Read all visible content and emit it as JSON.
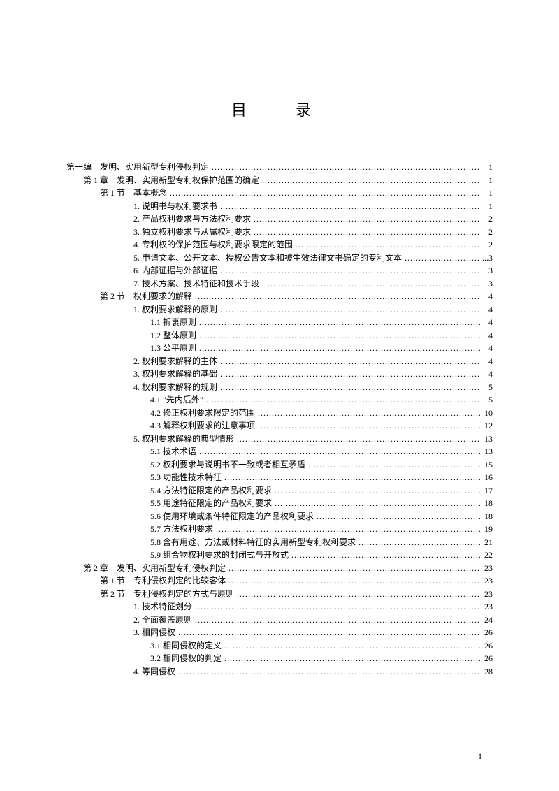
{
  "title": "目　录",
  "footer": "— 1 —",
  "entries": [
    {
      "indent": 0,
      "label": "第一编　发明、实用新型专利侵权判定",
      "page": "1"
    },
    {
      "indent": 1,
      "label": "第 1 章　发明、实用新型专利权保护范围的确定",
      "page": "1"
    },
    {
      "indent": 2,
      "label": "第 1 节　基本概念",
      "page": "1"
    },
    {
      "indent": 3,
      "label": "1. 说明书与权利要求书",
      "page": "1"
    },
    {
      "indent": 3,
      "label": "2. 产品权利要求与方法权利要求",
      "page": "2"
    },
    {
      "indent": 3,
      "label": "3. 独立权利要求与从属权利要求",
      "page": "2"
    },
    {
      "indent": 3,
      "label": "4. 专利权的保护范围与权利要求限定的范围",
      "page": "2"
    },
    {
      "indent": 3,
      "label": "5. 申请文本、公开文本、授权公告文本和被生效法律文书确定的专利文本",
      "page": "...3"
    },
    {
      "indent": 3,
      "label": "6. 内部证据与外部证据",
      "page": "3"
    },
    {
      "indent": 3,
      "label": "7. 技术方案、技术特征和技术手段",
      "page": "3"
    },
    {
      "indent": 2,
      "label": "第 2 节　权利要求的解释",
      "page": "4"
    },
    {
      "indent": 3,
      "label": "1. 权利要求解释的原则",
      "page": "4"
    },
    {
      "indent": 4,
      "label": "1.1 折衷原则",
      "page": "4"
    },
    {
      "indent": 4,
      "label": "1.2 整体原则",
      "page": "4"
    },
    {
      "indent": 4,
      "label": "1.3 公平原则",
      "page": "4"
    },
    {
      "indent": 3,
      "label": "2. 权利要求解释的主体",
      "page": "4"
    },
    {
      "indent": 3,
      "label": "3. 权利要求解释的基础",
      "page": "4"
    },
    {
      "indent": 3,
      "label": "4. 权利要求解释的规则",
      "page": "5"
    },
    {
      "indent": 4,
      "label": "4.1 \"先内后外\"",
      "page": "5"
    },
    {
      "indent": 4,
      "label": "4.2 修正权利要求限定的范围",
      "page": "10"
    },
    {
      "indent": 4,
      "label": "4.3 解释权利要求的注意事项",
      "page": "12"
    },
    {
      "indent": 3,
      "label": "5. 权利要求解释的典型情形",
      "page": "13"
    },
    {
      "indent": 4,
      "label": "5.1 技术术语",
      "page": "13"
    },
    {
      "indent": 4,
      "label": "5.2 权利要求与说明书不一致或者相互矛盾",
      "page": "15"
    },
    {
      "indent": 4,
      "label": "5.3 功能性技术特征",
      "page": "16"
    },
    {
      "indent": 4,
      "label": "5.4 方法特征限定的产品权利要求",
      "page": "17"
    },
    {
      "indent": 4,
      "label": "5.5 用途特征限定的产品权利要求",
      "page": "18"
    },
    {
      "indent": 4,
      "label": "5.6 使用环境或条件特征限定的产品权利要求",
      "page": "18"
    },
    {
      "indent": 4,
      "label": "5.7 方法权利要求",
      "page": "19"
    },
    {
      "indent": 4,
      "label": "5.8 含有用途、方法或材料特征的实用新型专利权利要求",
      "page": "21"
    },
    {
      "indent": 4,
      "label": "5.9 组合物权利要求的封闭式与开放式",
      "page": "22"
    },
    {
      "indent": 1,
      "label": "第 2 章　发明、实用新型专利侵权判定",
      "page": "23"
    },
    {
      "indent": 2,
      "label": "第 1 节　专利侵权判定的比较客体",
      "page": "23"
    },
    {
      "indent": 2,
      "label": "第 2 节　专利侵权判定的方式与原则",
      "page": "23"
    },
    {
      "indent": 3,
      "label": "1. 技术特征划分",
      "page": "23"
    },
    {
      "indent": 3,
      "label": "2. 全面覆盖原则",
      "page": "24"
    },
    {
      "indent": 3,
      "label": "3. 相同侵权",
      "page": "26"
    },
    {
      "indent": 4,
      "label": "3.1 相同侵权的定义",
      "page": "26"
    },
    {
      "indent": 4,
      "label": "3.2 相同侵权的判定",
      "page": "26"
    },
    {
      "indent": 3,
      "label": "4. 等同侵权",
      "page": "28"
    }
  ]
}
